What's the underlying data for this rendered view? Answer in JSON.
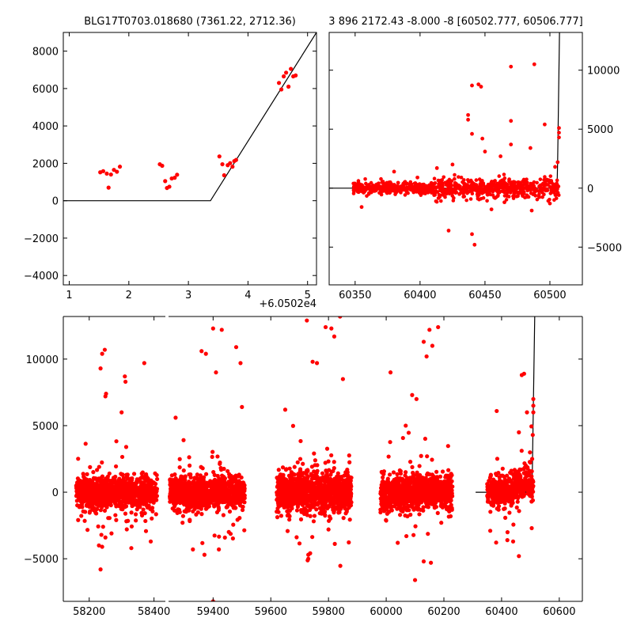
{
  "chart_data": [
    {
      "type": "scatter",
      "title": "BLG17T0703.018680 (7361.22, 2712.36)",
      "x_offset_label": "+6.0502e4",
      "xlim": [
        0.9,
        5.15
      ],
      "ylim": [
        -4500,
        9000
      ],
      "xticks": [
        "1",
        "2",
        "3",
        "4",
        "5"
      ],
      "yticks": [
        "-4000",
        "-2000",
        "0",
        "2000",
        "4000",
        "6000",
        "8000"
      ],
      "series": [
        {
          "points": [
            [
              1.52,
              1520
            ],
            [
              1.57,
              1580
            ],
            [
              1.63,
              1450
            ],
            [
              1.66,
              700
            ],
            [
              1.7,
              1400
            ],
            [
              1.75,
              1650
            ],
            [
              1.8,
              1550
            ],
            [
              1.85,
              1820
            ],
            [
              2.52,
              1950
            ],
            [
              2.56,
              1870
            ],
            [
              2.61,
              1050
            ],
            [
              2.64,
              680
            ],
            [
              2.68,
              750
            ],
            [
              2.72,
              1190
            ],
            [
              2.77,
              1230
            ],
            [
              2.81,
              1390
            ],
            [
              3.52,
              2370
            ],
            [
              3.57,
              1950
            ],
            [
              3.6,
              1360
            ],
            [
              3.66,
              1900
            ],
            [
              3.7,
              2010
            ],
            [
              3.74,
              1820
            ],
            [
              3.77,
              2120
            ],
            [
              3.8,
              2180
            ],
            [
              4.52,
              6300
            ],
            [
              4.56,
              5950
            ],
            [
              4.6,
              6650
            ],
            [
              4.64,
              6850
            ],
            [
              4.68,
              6100
            ],
            [
              4.72,
              7050
            ],
            [
              4.76,
              6650
            ],
            [
              4.8,
              6700
            ]
          ]
        }
      ],
      "model_line": [
        [
          0.9,
          0
        ],
        [
          3.37,
          0
        ],
        [
          5.15,
          9000
        ]
      ]
    },
    {
      "type": "scatter",
      "title": "3 896 2172.43 -8.000 -8 [60502.777, 60506.777]",
      "xlim": [
        60330,
        60525
      ],
      "ylim": [
        -8200,
        13200
      ],
      "xticks": [
        "60350",
        "60400",
        "60450",
        "60500"
      ],
      "yticks": [
        "-5000",
        "0",
        "5000",
        "10000"
      ],
      "y_axis_side": "right",
      "model_line": [
        [
          60330,
          0
        ],
        [
          60505.5,
          0
        ],
        [
          60506,
          2400
        ],
        [
          60507.4,
          13200
        ]
      ],
      "outliers": [
        [
          60355,
          -1600
        ],
        [
          60422,
          -3600
        ],
        [
          60440,
          -3900
        ],
        [
          60442,
          -4800
        ],
        [
          60437,
          6200
        ],
        [
          60437,
          5800
        ],
        [
          60440,
          8700
        ],
        [
          60445,
          8800
        ],
        [
          60447,
          8600
        ],
        [
          60470,
          10300
        ],
        [
          60488,
          10500
        ],
        [
          60470,
          5700
        ],
        [
          60496,
          5400
        ],
        [
          60440,
          4600
        ],
        [
          60448,
          4200
        ],
        [
          60450,
          3100
        ],
        [
          60425,
          2000
        ],
        [
          60470,
          3700
        ],
        [
          60485,
          3400
        ],
        [
          60462,
          2700
        ],
        [
          60413,
          1700
        ],
        [
          60380,
          1400
        ],
        [
          60465,
          -1200
        ],
        [
          60486,
          -1900
        ],
        [
          60500,
          -1300
        ],
        [
          60455,
          -1800
        ],
        [
          60398,
          900
        ],
        [
          60507,
          5100
        ],
        [
          60507,
          4700
        ],
        [
          60507,
          4300
        ],
        [
          60506,
          2200
        ],
        [
          60504,
          1800
        ]
      ]
    },
    {
      "type": "scatter",
      "xlim": [
        58120,
        60680
      ],
      "ylim": [
        -8200,
        13200
      ],
      "xticks": [
        "58200",
        "58400",
        "59400",
        "59600",
        "59800",
        "60000",
        "60200",
        "60400",
        "60600"
      ],
      "yticks": [
        "-5000",
        "0",
        "5000",
        "10000"
      ],
      "axis_break": [
        58440,
        59240
      ],
      "seasons": [
        [
          58160,
          58410
        ],
        [
          59250,
          59510
        ],
        [
          59620,
          59880
        ],
        [
          59980,
          60230
        ],
        [
          60350,
          60510
        ]
      ],
      "model_line": [
        [
          60310,
          0
        ],
        [
          60505,
          0
        ],
        [
          60507,
          2000
        ],
        [
          60515,
          13200
        ]
      ],
      "outliers": [
        [
          58240,
          10400
        ],
        [
          58248,
          10700
        ],
        [
          58235,
          9300
        ],
        [
          58250,
          7200
        ],
        [
          58252,
          7400
        ],
        [
          58310,
          8700
        ],
        [
          58312,
          8300
        ],
        [
          58370,
          9700
        ],
        [
          58300,
          6000
        ],
        [
          58230,
          -4000
        ],
        [
          58240,
          -4100
        ],
        [
          58235,
          -5800
        ],
        [
          58250,
          -3400
        ],
        [
          58330,
          -4200
        ],
        [
          58390,
          -3700
        ],
        [
          59400,
          12300
        ],
        [
          59430,
          12200
        ],
        [
          59360,
          10600
        ],
        [
          59375,
          10400
        ],
        [
          59410,
          9000
        ],
        [
          59480,
          10900
        ],
        [
          59495,
          9700
        ],
        [
          59330,
          -4300
        ],
        [
          59420,
          -4300
        ],
        [
          59370,
          -4700
        ],
        [
          59400,
          -8200
        ],
        [
          59270,
          5600
        ],
        [
          59500,
          6400
        ],
        [
          59725,
          12900
        ],
        [
          59790,
          12400
        ],
        [
          59810,
          12300
        ],
        [
          59760,
          9700
        ],
        [
          59745,
          9800
        ],
        [
          59820,
          11700
        ],
        [
          59840,
          13200
        ],
        [
          59730,
          -4700
        ],
        [
          59730,
          -5000
        ],
        [
          59650,
          6200
        ],
        [
          59850,
          8500
        ],
        [
          59800,
          -2800
        ],
        [
          60015,
          9000
        ],
        [
          60090,
          7300
        ],
        [
          60105,
          7000
        ],
        [
          60150,
          12200
        ],
        [
          60180,
          12400
        ],
        [
          60130,
          11300
        ],
        [
          60140,
          10200
        ],
        [
          60160,
          11000
        ],
        [
          60100,
          -6600
        ],
        [
          60130,
          -5200
        ],
        [
          60155,
          -5300
        ],
        [
          60040,
          -3800
        ],
        [
          60070,
          -3300
        ],
        [
          60470,
          8800
        ],
        [
          60478,
          8900
        ],
        [
          60460,
          4500
        ],
        [
          60488,
          6000
        ],
        [
          60420,
          -3600
        ],
        [
          60440,
          -3700
        ],
        [
          60460,
          -4800
        ],
        [
          60510,
          7000
        ],
        [
          60510,
          6500
        ],
        [
          60510,
          6000
        ],
        [
          60508,
          4300
        ],
        [
          60506,
          2500
        ]
      ]
    }
  ]
}
